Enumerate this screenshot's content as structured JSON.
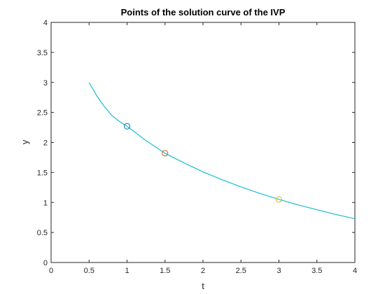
{
  "chart_data": {
    "type": "line",
    "title": "Points of the solution curve of the IVP",
    "xlabel": "t",
    "ylabel": "y",
    "xlim": [
      0,
      4
    ],
    "ylim": [
      0,
      4
    ],
    "xticks": [
      0,
      0.5,
      1,
      1.5,
      2,
      2.5,
      3,
      3.5,
      4
    ],
    "xtick_labels": [
      "0",
      "0.5",
      "1",
      "1.5",
      "2",
      "2.5",
      "3",
      "3.5",
      "4"
    ],
    "yticks": [
      0,
      0.5,
      1,
      1.5,
      2,
      2.5,
      3,
      3.5,
      4
    ],
    "ytick_labels": [
      "0",
      "0.5",
      "1",
      "1.5",
      "2",
      "2.5",
      "3",
      "3.5",
      "4"
    ],
    "grid": false,
    "box": true,
    "curve": {
      "color": "#17BECF",
      "x": [
        0.5,
        0.6,
        0.7,
        0.8,
        0.9,
        1.0,
        1.25,
        1.5,
        1.75,
        2.0,
        2.25,
        2.5,
        2.75,
        3.0,
        3.25,
        3.5,
        3.75,
        4.0
      ],
      "y": [
        3.0,
        2.78,
        2.6,
        2.45,
        2.35,
        2.27,
        2.03,
        1.82,
        1.66,
        1.51,
        1.38,
        1.26,
        1.15,
        1.05,
        0.96,
        0.88,
        0.8,
        0.73
      ]
    },
    "points": [
      {
        "x": 1.0,
        "y": 2.27,
        "color": "#0072BD"
      },
      {
        "x": 1.5,
        "y": 1.82,
        "color": "#D95319"
      },
      {
        "x": 3.0,
        "y": 1.05,
        "color": "#EDB120"
      }
    ]
  }
}
